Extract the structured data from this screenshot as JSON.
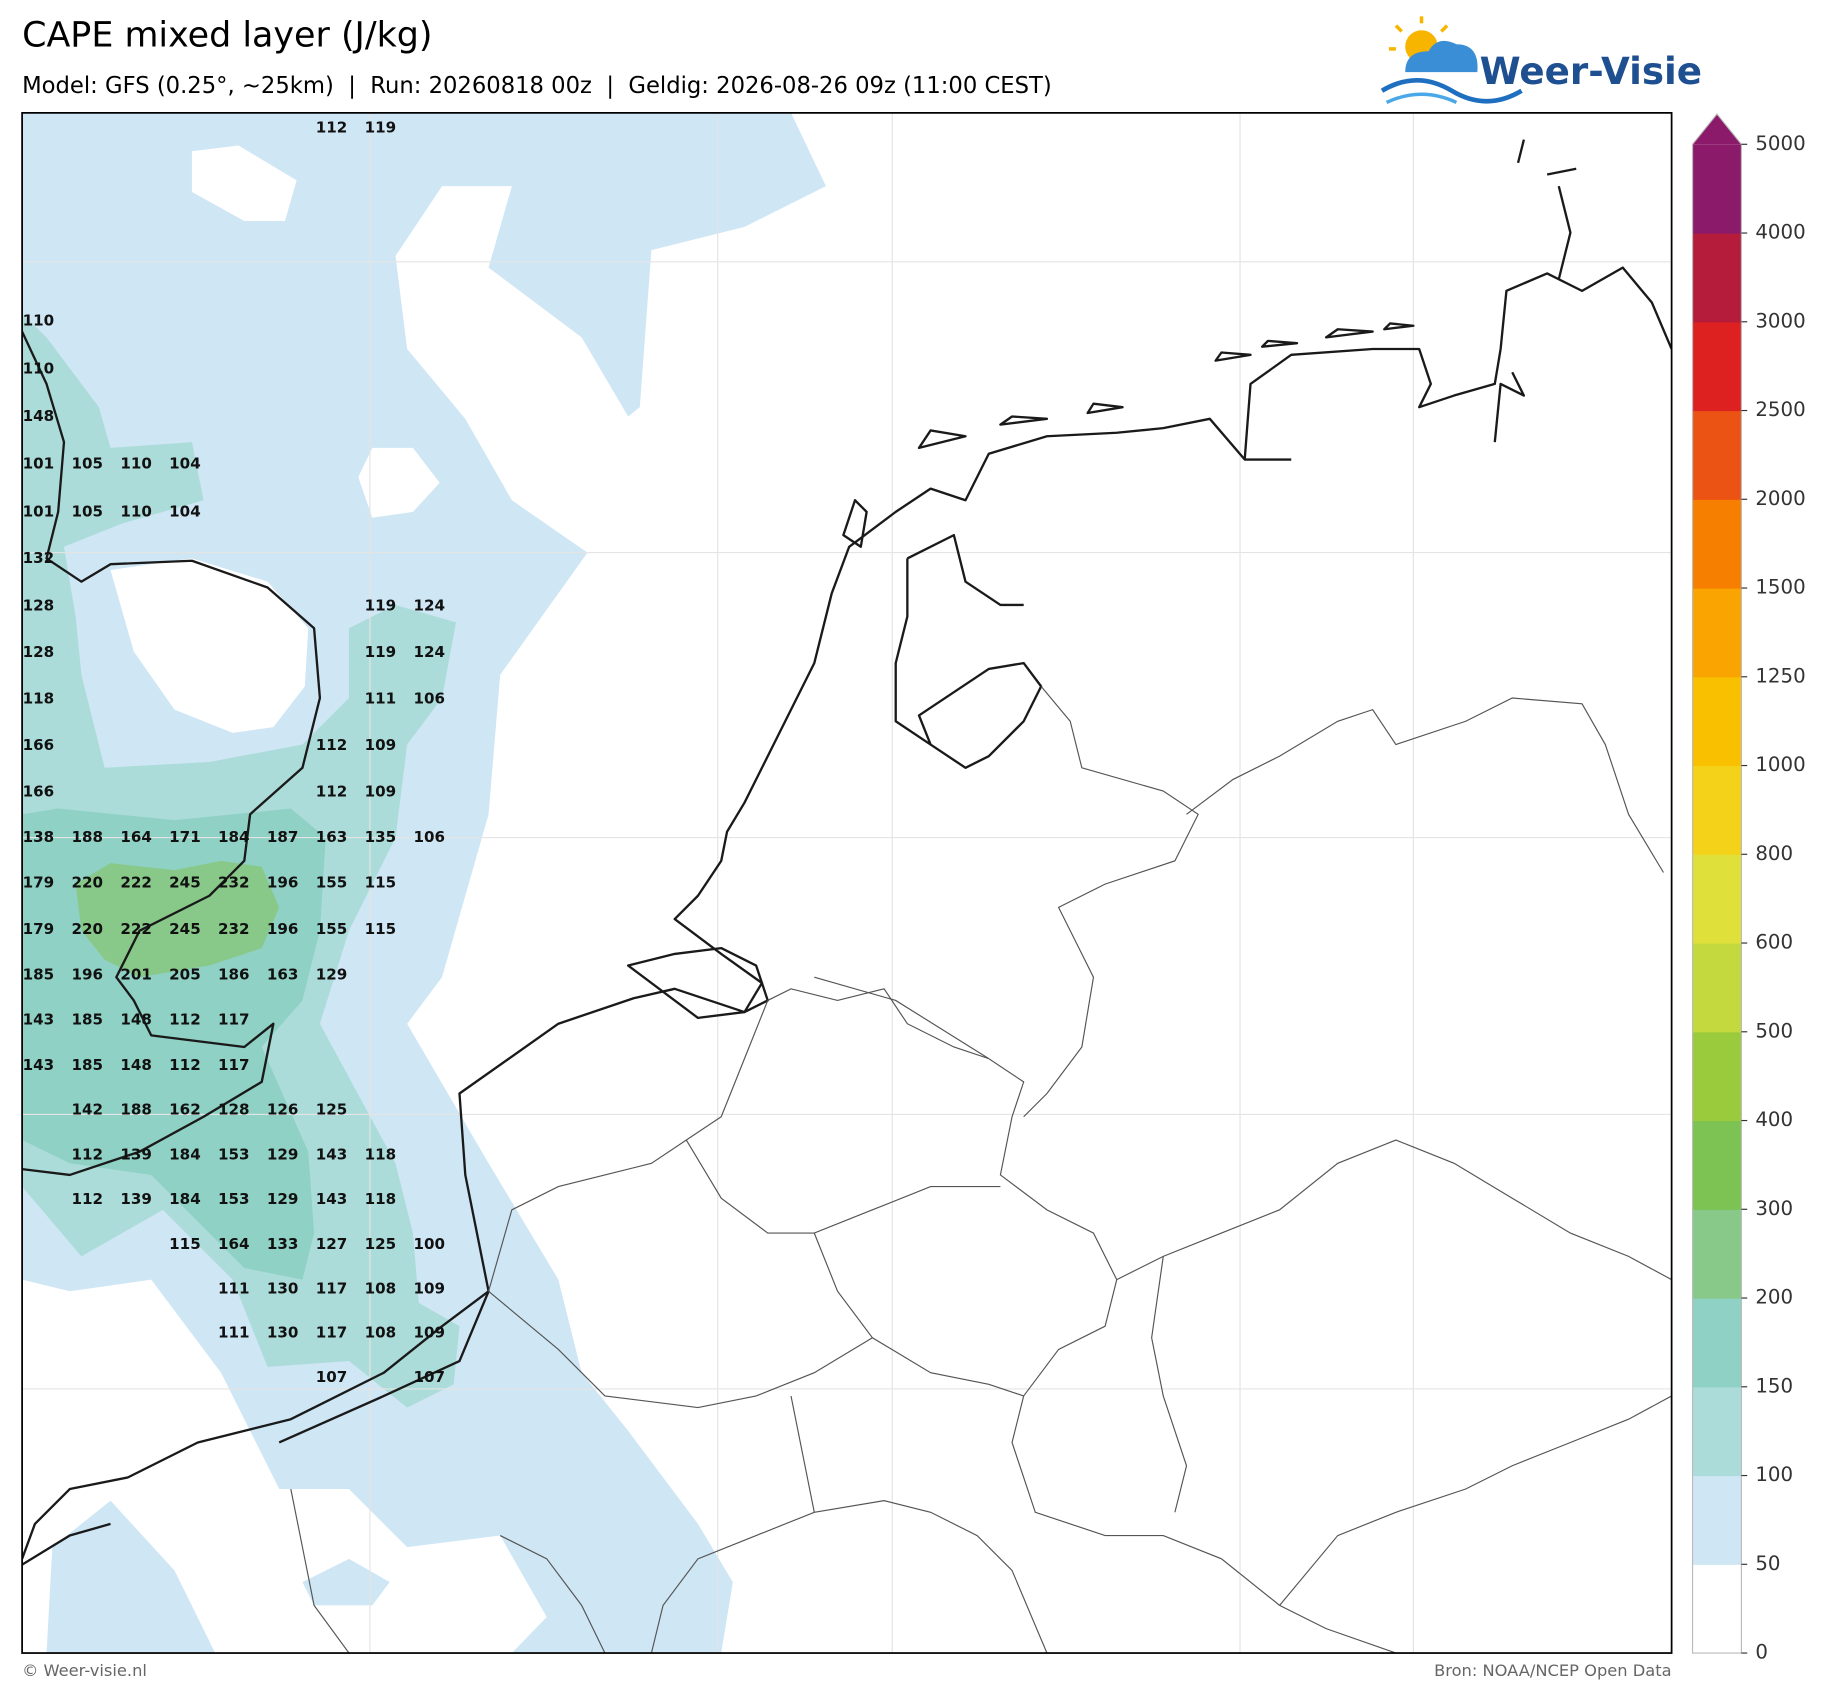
{
  "header": {
    "title": "CAPE mixed layer (J/kg)",
    "subtitle": "Model: GFS (0.25°, ~25km)  |  Run: 20260818 00z  |  Geldig: 2026-08-26 09z (11:00 CEST)",
    "logo": "Weer-Visie"
  },
  "colorbar": {
    "ticks": [
      0,
      50,
      100,
      150,
      200,
      300,
      400,
      500,
      600,
      800,
      1000,
      1250,
      1500,
      2000,
      2500,
      3000,
      4000,
      5000
    ],
    "colors": [
      "#ffffff",
      "#cfe6f5",
      "#acdcd9",
      "#8fd1c4",
      "#88c98a",
      "#7cc353",
      "#9acb3c",
      "#c3d93e",
      "#dfe03a",
      "#f3d219",
      "#f9c000",
      "#f9a400",
      "#f77f00",
      "#ea5313",
      "#dd2020",
      "#b51c3c",
      "#8b1a6b"
    ],
    "extend_color": "#8b1a6b"
  },
  "grid_values": {
    "rows": [
      [
        null,
        null,
        null,
        null,
        null,
        null,
        112,
        119,
        null
      ],
      [
        110,
        null,
        null,
        null,
        null,
        null,
        null,
        null,
        null
      ],
      [
        110,
        null,
        null,
        null,
        null,
        null,
        null,
        null,
        null
      ],
      [
        148,
        null,
        null,
        null,
        null,
        null,
        null,
        null,
        null
      ],
      [
        101,
        105,
        110,
        104,
        null,
        null,
        null,
        null,
        null
      ],
      [
        101,
        105,
        110,
        104,
        null,
        null,
        null,
        null,
        null
      ],
      [
        132,
        null,
        null,
        null,
        null,
        null,
        null,
        null,
        null
      ],
      [
        128,
        null,
        null,
        null,
        null,
        null,
        null,
        119,
        124
      ],
      [
        128,
        null,
        null,
        null,
        null,
        null,
        null,
        119,
        124
      ],
      [
        118,
        null,
        null,
        null,
        null,
        null,
        null,
        111,
        106
      ],
      [
        166,
        null,
        null,
        null,
        null,
        null,
        112,
        109,
        null
      ],
      [
        166,
        null,
        null,
        null,
        null,
        null,
        112,
        109,
        null
      ],
      [
        138,
        188,
        164,
        171,
        184,
        187,
        163,
        135,
        106
      ],
      [
        179,
        220,
        222,
        245,
        232,
        196,
        155,
        115,
        null
      ],
      [
        179,
        220,
        222,
        245,
        232,
        196,
        155,
        115,
        null
      ],
      [
        185,
        196,
        201,
        205,
        186,
        163,
        129,
        null,
        null
      ],
      [
        143,
        185,
        148,
        112,
        117,
        null,
        null,
        null,
        null
      ],
      [
        143,
        185,
        148,
        112,
        117,
        null,
        null,
        null,
        null
      ],
      [
        null,
        142,
        188,
        162,
        128,
        126,
        125,
        null,
        null
      ],
      [
        null,
        112,
        139,
        184,
        153,
        129,
        143,
        118,
        null
      ],
      [
        null,
        112,
        139,
        184,
        153,
        129,
        143,
        118,
        null
      ],
      [
        null,
        null,
        null,
        115,
        164,
        133,
        127,
        125,
        100
      ],
      [
        null,
        null,
        null,
        null,
        111,
        130,
        117,
        108,
        109
      ],
      [
        null,
        null,
        null,
        null,
        111,
        130,
        117,
        108,
        109
      ],
      [
        null,
        null,
        null,
        null,
        null,
        null,
        107,
        null,
        107
      ]
    ]
  },
  "footer": {
    "copyright": "© Weer-visie.nl",
    "source": "Bron: NOAA/NCEP Open Data"
  }
}
